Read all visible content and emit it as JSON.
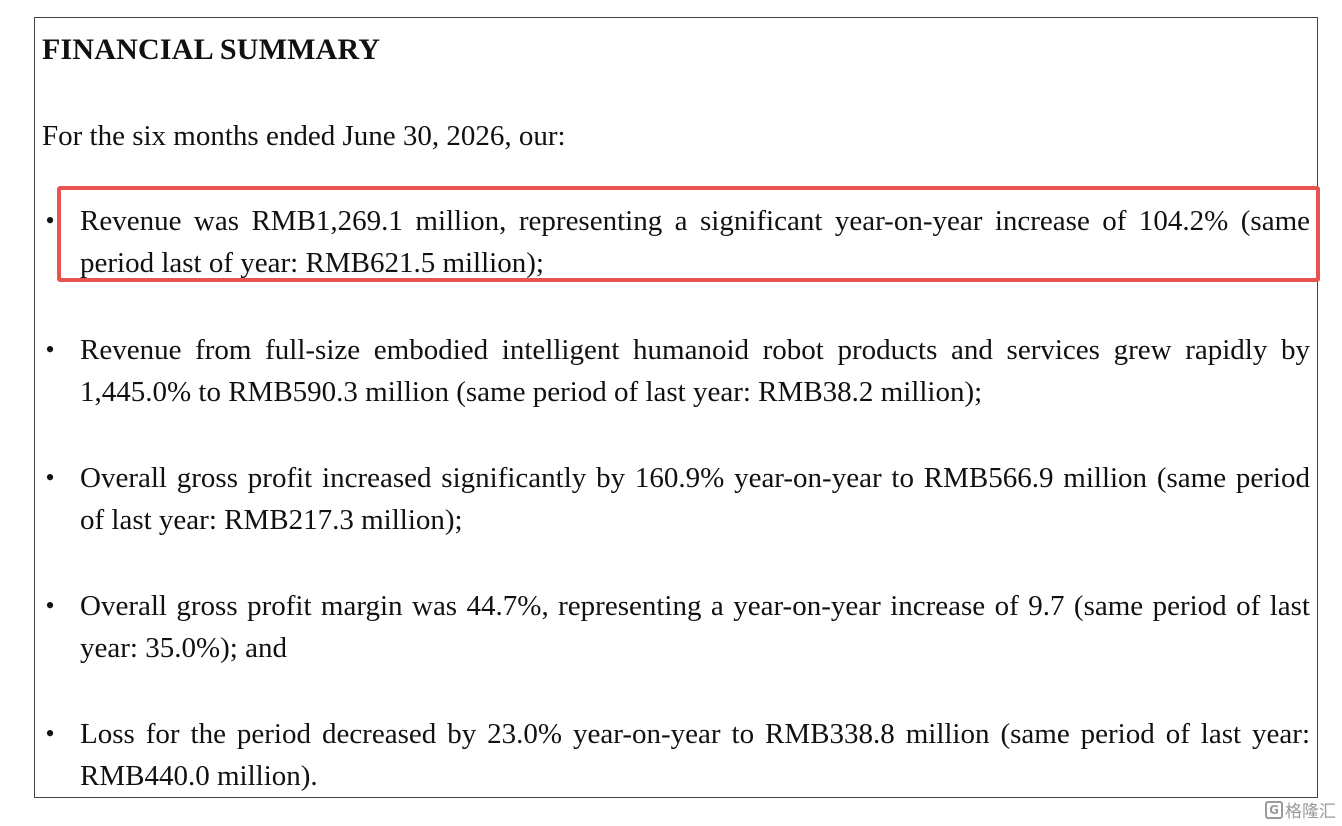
{
  "document": {
    "title": "FINANCIAL SUMMARY",
    "intro": "For the six months ended June 30, 2026, our:",
    "bullet_symbol": "•",
    "bullets": [
      {
        "text": "Revenue was RMB1,269.1 million, representing a significant year-on-year increase of 104.2% (same period last of year: RMB621.5 million);",
        "highlighted": true
      },
      {
        "text": "Revenue from full-size embodied intelligent humanoid robot products and services grew rapidly by 1,445.0% to RMB590.3 million (same period of last year: RMB38.2 million);",
        "highlighted": false
      },
      {
        "text": "Overall gross profit increased significantly by 160.9% year-on-year to RMB566.9 million (same period of last year: RMB217.3 million);",
        "highlighted": false
      },
      {
        "text": "Overall gross profit margin was 44.7%, representing a year-on-year increase of 9.7 (same period of last year: 35.0%); and",
        "highlighted": false
      },
      {
        "text": "Loss for the period decreased by 23.0% year-on-year to RMB338.8 million (same period of last year: RMB440.0 million).",
        "highlighted": false
      }
    ]
  },
  "highlight_color": "#e8534f",
  "watermark": {
    "logo_glyph": "G",
    "text": "格隆汇"
  }
}
